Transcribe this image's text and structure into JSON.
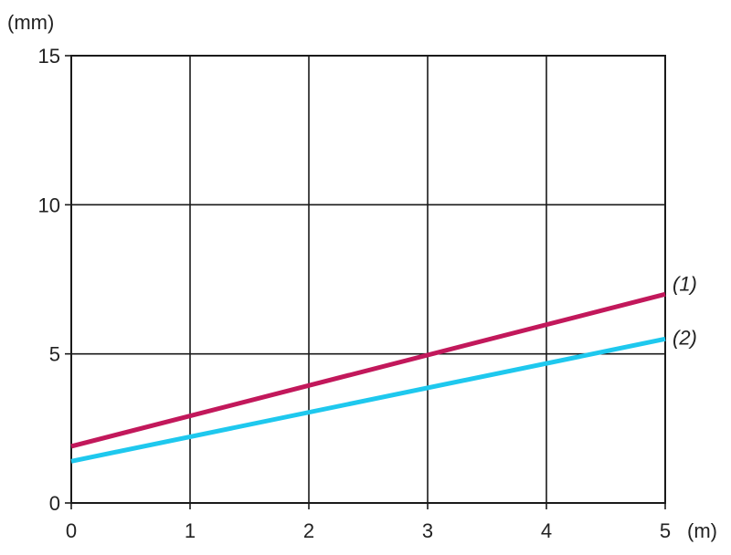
{
  "chart_data": {
    "type": "line",
    "y_unit": "(mm)",
    "x_unit": "(m)",
    "xlim": [
      0,
      5
    ],
    "ylim": [
      0,
      15
    ],
    "x_ticks": [
      "0",
      "1",
      "2",
      "3",
      "4",
      "5"
    ],
    "y_ticks": [
      "0",
      "5",
      "10",
      "15"
    ],
    "grid": true,
    "series": [
      {
        "name": "(1)",
        "color": "#c2185b",
        "x": [
          0,
          5
        ],
        "y": [
          1.9,
          7.0
        ]
      },
      {
        "name": "(2)",
        "color": "#1ec8ee",
        "x": [
          0,
          5
        ],
        "y": [
          1.4,
          5.5
        ]
      }
    ]
  }
}
